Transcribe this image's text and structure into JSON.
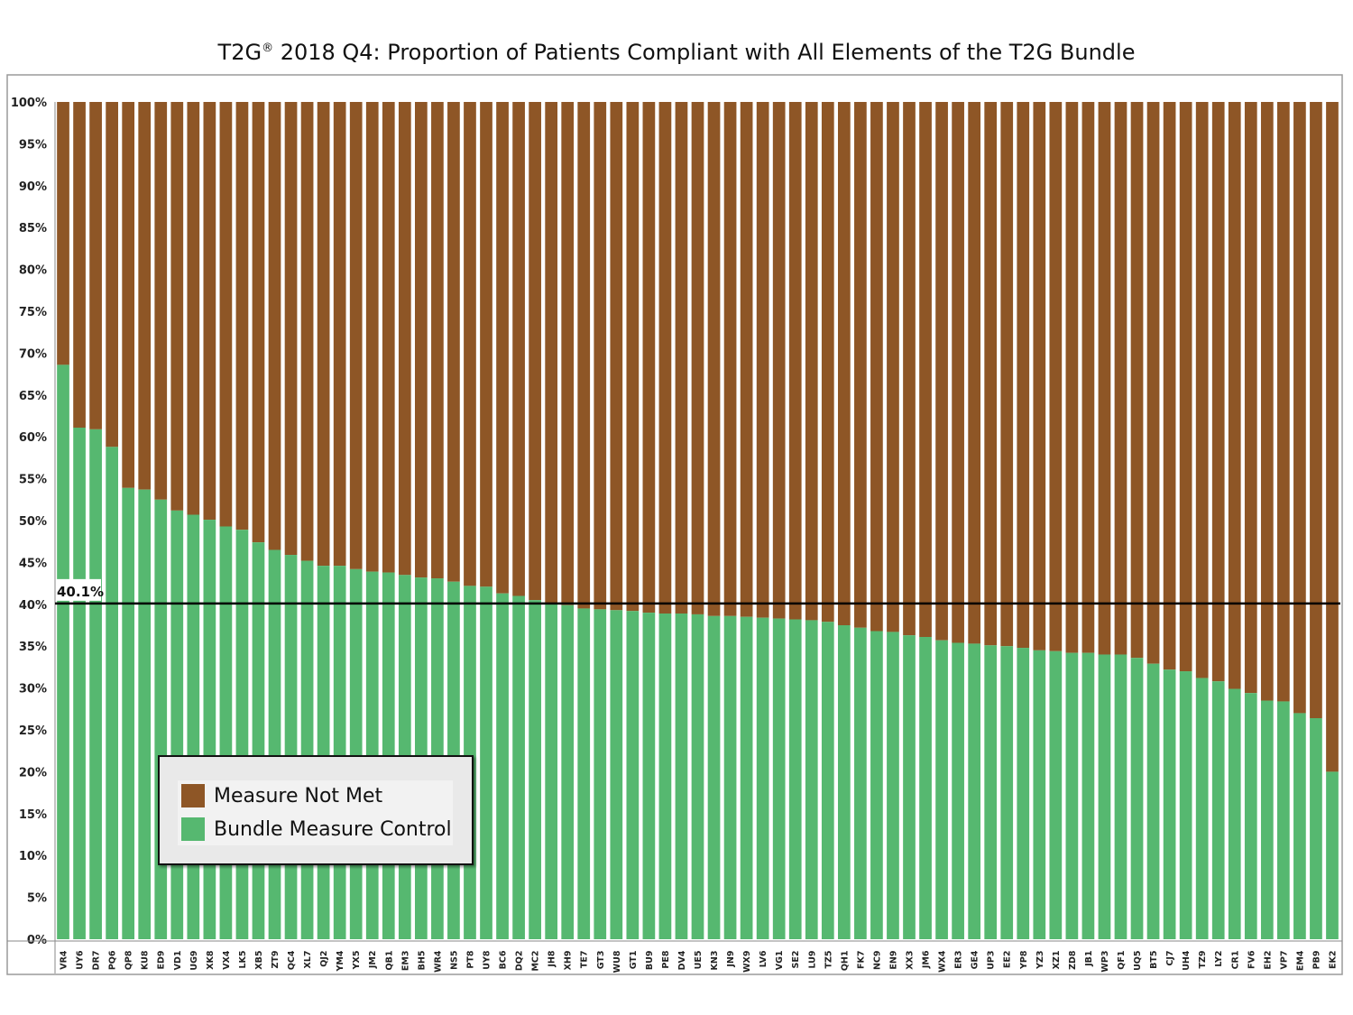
{
  "chart_data": {
    "type": "bar",
    "stacked": true,
    "title_main": "T2G",
    "title_mark": "®",
    "title_rest": " 2018 Q4: Proportion of Patients Compliant with All Elements of the T2G Bundle",
    "categories": [
      "VR4",
      "UY6",
      "DR7",
      "PQ6",
      "QP8",
      "KU8",
      "ED9",
      "VD1",
      "UG9",
      "XK8",
      "VX4",
      "LK5",
      "XB5",
      "ZT9",
      "QC4",
      "XL7",
      "QJ2",
      "YM4",
      "YX5",
      "JM2",
      "QB1",
      "EM3",
      "BH5",
      "WR4",
      "NS5",
      "PT8",
      "UY8",
      "BC6",
      "DQ2",
      "MC2",
      "JH8",
      "XH9",
      "TE7",
      "GT3",
      "WU8",
      "GT1",
      "BU9",
      "PE8",
      "DV4",
      "UE5",
      "KN3",
      "JN9",
      "WX9",
      "LV6",
      "VG1",
      "SE2",
      "LU9",
      "TZ5",
      "QH1",
      "FK7",
      "NC9",
      "EN9",
      "XX3",
      "JM6",
      "WX4",
      "ER3",
      "GE4",
      "UP3",
      "EE2",
      "YP8",
      "YZ3",
      "XZ1",
      "ZD8",
      "JB1",
      "WP3",
      "QF1",
      "UQ5",
      "BT5",
      "CJ7",
      "UH4",
      "TZ9",
      "LY2",
      "CR1",
      "FV6",
      "EH2",
      "VP7",
      "EM4",
      "PB9",
      "EK2"
    ],
    "series": [
      {
        "name": "Bundle Measure Control",
        "color": "#56b870",
        "values": [
          68.6,
          61.1,
          60.9,
          58.8,
          53.9,
          53.7,
          52.5,
          51.2,
          50.7,
          50.1,
          49.3,
          48.9,
          47.4,
          46.5,
          45.9,
          45.2,
          44.6,
          44.6,
          44.2,
          43.9,
          43.8,
          43.5,
          43.2,
          43.1,
          42.7,
          42.2,
          42.1,
          41.3,
          41.0,
          40.5,
          40.0,
          39.9,
          39.5,
          39.4,
          39.3,
          39.2,
          39.0,
          38.9,
          38.9,
          38.8,
          38.6,
          38.6,
          38.5,
          38.4,
          38.3,
          38.2,
          38.1,
          37.9,
          37.5,
          37.2,
          36.8,
          36.7,
          36.3,
          36.1,
          35.7,
          35.4,
          35.3,
          35.1,
          35.0,
          34.8,
          34.5,
          34.4,
          34.2,
          34.2,
          34.0,
          34.0,
          33.6,
          32.9,
          32.2,
          32.0,
          31.2,
          30.8,
          29.9,
          29.4,
          28.5,
          28.4,
          27.0,
          26.4,
          20.0
        ]
      },
      {
        "name": "Measure Not Met",
        "color": "#8e5626"
      }
    ],
    "reference_line": {
      "value": 40.1,
      "label": "40.1%",
      "color": "#000000"
    },
    "y_ticks": [
      "0%",
      "5%",
      "10%",
      "15%",
      "20%",
      "25%",
      "30%",
      "35%",
      "40%",
      "45%",
      "50%",
      "55%",
      "60%",
      "65%",
      "70%",
      "75%",
      "80%",
      "85%",
      "90%",
      "95%",
      "100%"
    ],
    "ylim": [
      0,
      100
    ],
    "grid": false,
    "legend": {
      "position": "bottom-left",
      "items": [
        {
          "label": "Measure Not Met",
          "color": "#8e5626"
        },
        {
          "label": "Bundle Measure Control",
          "color": "#56b870"
        }
      ]
    }
  }
}
